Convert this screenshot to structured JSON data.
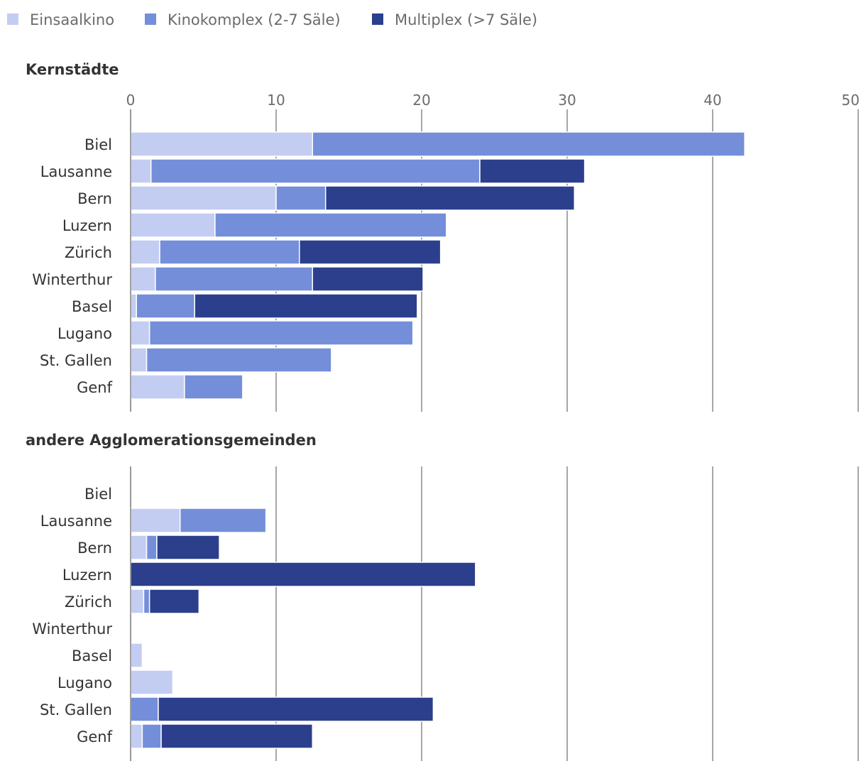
{
  "chart_data": {
    "type": "bar",
    "orientation": "horizontal",
    "stacked": true,
    "xlim": [
      0,
      50
    ],
    "xticks": [
      0,
      10,
      20,
      30,
      40,
      50
    ],
    "grid": true,
    "legend_position": "top-left",
    "series": [
      {
        "name": "Einsaalkino",
        "color": "#c3cdf2"
      },
      {
        "name": "Kinokomplex (2-7 Säle)",
        "color": "#748ed9"
      },
      {
        "name": "Multiplex (>7 Säle)",
        "color": "#2b3f8c"
      }
    ],
    "panels": [
      {
        "title": "Kernstädte",
        "categories": [
          "Biel",
          "Lausanne",
          "Bern",
          "Luzern",
          "Zürich",
          "Winterthur",
          "Basel",
          "Lugano",
          "St. Gallen",
          "Genf"
        ],
        "values": [
          [
            12.5,
            29.7,
            0
          ],
          [
            1.4,
            22.6,
            7.2
          ],
          [
            10.0,
            3.4,
            17.1
          ],
          [
            5.8,
            15.9,
            0
          ],
          [
            2.0,
            9.6,
            9.7
          ],
          [
            1.7,
            10.8,
            7.6
          ],
          [
            0.4,
            4.0,
            15.3
          ],
          [
            1.3,
            18.1,
            0
          ],
          [
            1.1,
            12.7,
            0
          ],
          [
            3.7,
            4.0,
            0
          ]
        ]
      },
      {
        "title": "andere Agglomerationsgemeinden",
        "categories": [
          "Biel",
          "Lausanne",
          "Bern",
          "Luzern",
          "Zürich",
          "Winterthur",
          "Basel",
          "Lugano",
          "St. Gallen",
          "Genf"
        ],
        "values": [
          [
            0,
            0,
            0
          ],
          [
            3.4,
            5.9,
            0
          ],
          [
            1.1,
            0.7,
            4.3
          ],
          [
            0,
            0,
            23.7
          ],
          [
            0.9,
            0.4,
            3.4
          ],
          [
            0,
            0,
            0
          ],
          [
            0.8,
            0,
            0
          ],
          [
            2.9,
            0,
            0
          ],
          [
            0,
            1.9,
            18.9
          ],
          [
            0.8,
            1.3,
            10.4
          ]
        ]
      }
    ]
  }
}
